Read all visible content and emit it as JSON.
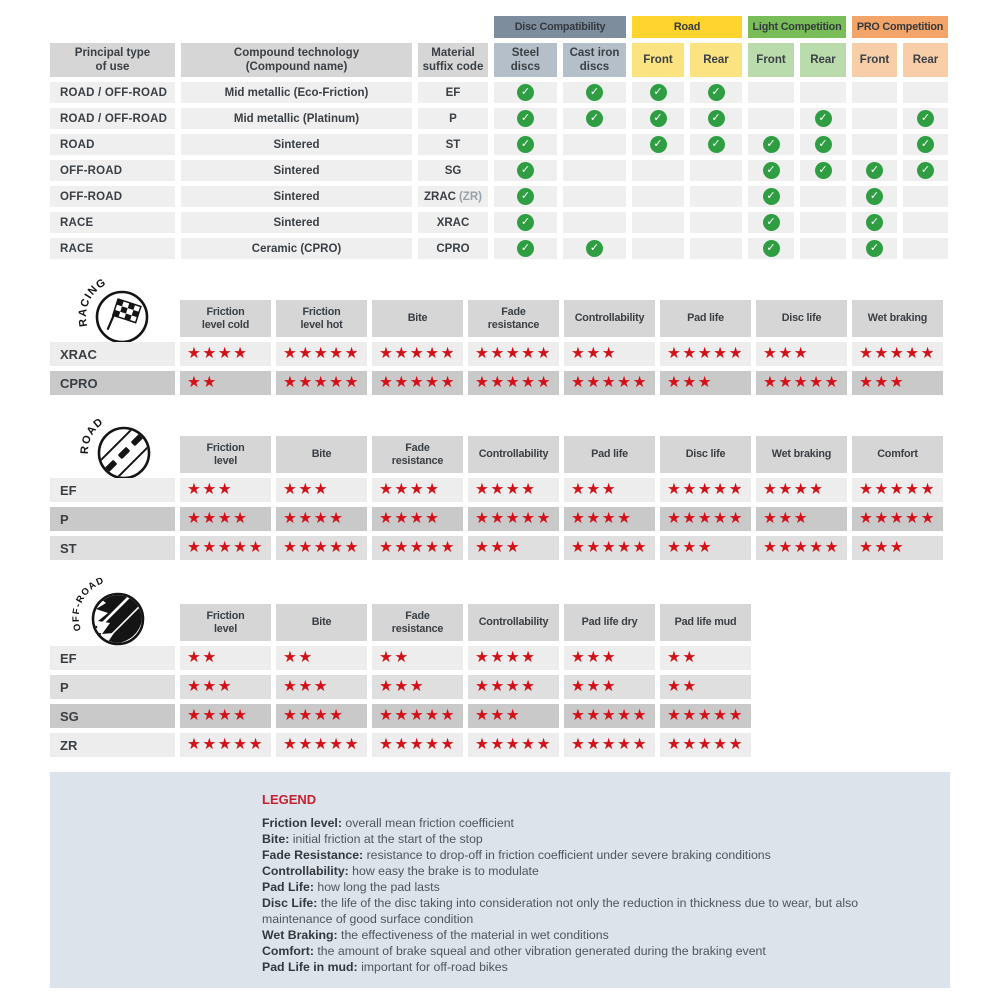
{
  "palette": {
    "star_red": "#d21019",
    "check_green": "#2f9e43",
    "header_gray": "#d6d6d6",
    "body_cell_gray": "#efefef",
    "legend_bg": "#dce3ea",
    "legend_title_red": "#c51f30",
    "row_shades": {
      "light": "#ededed",
      "medium": "#dfdfdf",
      "dark": "#c9c9c9"
    }
  },
  "icons": {
    "check": "✓",
    "star": "★"
  },
  "chart_data": [
    {
      "type": "table",
      "kind": "compatibility",
      "left_headers": [
        "Principal type\nof use",
        "Compound technology\n(Compound name)",
        "Material\nsuffix code"
      ],
      "groups": [
        {
          "label": "Disc Compatibility",
          "bg": "#7e8d9d",
          "sub_bg": "#b4bfc9",
          "subs": [
            "Steel\ndiscs",
            "Cast iron\ndiscs"
          ]
        },
        {
          "label": "Road",
          "bg": "#ffd42e",
          "sub_bg": "#fae380",
          "subs": [
            "Front",
            "Rear"
          ]
        },
        {
          "label": "Light Competition",
          "bg": "#79bd58",
          "sub_bg": "#badcac",
          "subs": [
            "Front",
            "Rear"
          ]
        },
        {
          "label": "PRO Competition",
          "bg": "#f2a469",
          "sub_bg": "#f8cea9",
          "subs": [
            "Front",
            "Rear"
          ]
        }
      ],
      "check_columns": [
        "Steel discs",
        "Cast iron discs",
        "Road Front",
        "Road Rear",
        "Light Competition Front",
        "Light Competition Rear",
        "PRO Competition Front",
        "PRO Competition Rear"
      ],
      "rows": [
        {
          "use": "ROAD / OFF-ROAD",
          "technology": "Mid metallic (Eco-Friction)",
          "code": "EF",
          "code_note": "",
          "checks": [
            1,
            1,
            1,
            1,
            0,
            0,
            0,
            0
          ]
        },
        {
          "use": "ROAD / OFF-ROAD",
          "technology": "Mid metallic (Platinum)",
          "code": "P",
          "code_note": "",
          "checks": [
            1,
            1,
            1,
            1,
            0,
            1,
            0,
            1
          ]
        },
        {
          "use": "ROAD",
          "technology": "Sintered",
          "code": "ST",
          "code_note": "",
          "checks": [
            1,
            0,
            1,
            1,
            1,
            1,
            0,
            1
          ]
        },
        {
          "use": "OFF-ROAD",
          "technology": "Sintered",
          "code": "SG",
          "code_note": "",
          "checks": [
            1,
            0,
            0,
            0,
            1,
            1,
            1,
            1
          ]
        },
        {
          "use": "OFF-ROAD",
          "technology": "Sintered",
          "code": "ZRAC",
          "code_note": "(ZR)",
          "checks": [
            1,
            0,
            0,
            0,
            1,
            0,
            1,
            0
          ]
        },
        {
          "use": "RACE",
          "technology": "Sintered",
          "code": "XRAC",
          "code_note": "",
          "checks": [
            1,
            0,
            0,
            0,
            1,
            0,
            1,
            0
          ]
        },
        {
          "use": "RACE",
          "technology": "Ceramic (CPRO)",
          "code": "CPRO",
          "code_note": "",
          "checks": [
            1,
            1,
            0,
            0,
            1,
            0,
            1,
            0
          ]
        }
      ]
    },
    {
      "type": "table",
      "kind": "ratings",
      "id": "racing",
      "label": "RACING",
      "rating_scale_max": 5,
      "columns": [
        "Friction\nlevel cold",
        "Friction\nlevel hot",
        "Bite",
        "Fade\nresistance",
        "Controllability",
        "Pad life",
        "Disc life",
        "Wet braking"
      ],
      "rows": [
        {
          "code": "XRAC",
          "shade": "light",
          "stars": [
            4,
            5,
            5,
            5,
            3,
            5,
            3,
            5
          ]
        },
        {
          "code": "CPRO",
          "shade": "dark",
          "stars": [
            2,
            5,
            5,
            5,
            5,
            3,
            5,
            3
          ]
        }
      ]
    },
    {
      "type": "table",
      "kind": "ratings",
      "id": "road",
      "label": "ROAD",
      "rating_scale_max": 5,
      "columns": [
        "Friction\nlevel",
        "Bite",
        "Fade\nresistance",
        "Controllability",
        "Pad life",
        "Disc life",
        "Wet braking",
        "Comfort"
      ],
      "rows": [
        {
          "code": "EF",
          "shade": "light",
          "stars": [
            3,
            3,
            4,
            4,
            3,
            5,
            4,
            5
          ]
        },
        {
          "code": "P",
          "shade": "dark",
          "stars": [
            4,
            4,
            4,
            5,
            4,
            5,
            3,
            5
          ]
        },
        {
          "code": "ST",
          "shade": "medium",
          "stars": [
            5,
            5,
            5,
            3,
            5,
            3,
            5,
            3
          ]
        }
      ]
    },
    {
      "type": "table",
      "kind": "ratings",
      "id": "offroad",
      "label": "OFF-ROAD",
      "rating_scale_max": 5,
      "columns": [
        "Friction\nlevel",
        "Bite",
        "Fade\nresistance",
        "Controllability",
        "Pad life dry",
        "Pad life mud"
      ],
      "rows": [
        {
          "code": "EF",
          "shade": "light",
          "stars": [
            2,
            2,
            2,
            4,
            3,
            2
          ]
        },
        {
          "code": "P",
          "shade": "medium",
          "stars": [
            3,
            3,
            3,
            4,
            3,
            2
          ]
        },
        {
          "code": "SG",
          "shade": "dark",
          "stars": [
            4,
            4,
            5,
            3,
            5,
            5
          ]
        },
        {
          "code": "ZR",
          "shade": "light",
          "stars": [
            5,
            5,
            5,
            5,
            5,
            5
          ]
        }
      ]
    }
  ],
  "legend": {
    "title": "LEGEND",
    "items": [
      {
        "term": "Friction level",
        "desc": "overall mean friction coefficient"
      },
      {
        "term": "Bite",
        "desc": "initial friction at the start of the stop"
      },
      {
        "term": "Fade Resistance",
        "desc": "resistance to drop-off in friction coefficient under severe braking conditions"
      },
      {
        "term": "Controllability",
        "desc": "how easy the brake is to modulate"
      },
      {
        "term": "Pad Life",
        "desc": "how long the pad lasts"
      },
      {
        "term": "Disc Life",
        "desc": "the life of the disc taking into consideration not only the reduction in thickness due to wear, but also maintenance of good surface condition"
      },
      {
        "term": "Wet Braking",
        "desc": "the effectiveness of the material in wet conditions"
      },
      {
        "term": "Comfort",
        "desc": "the amount of brake squeal and other vibration generated during the braking event"
      },
      {
        "term": "Pad Life in mud",
        "desc": "important for off-road bikes"
      }
    ]
  }
}
